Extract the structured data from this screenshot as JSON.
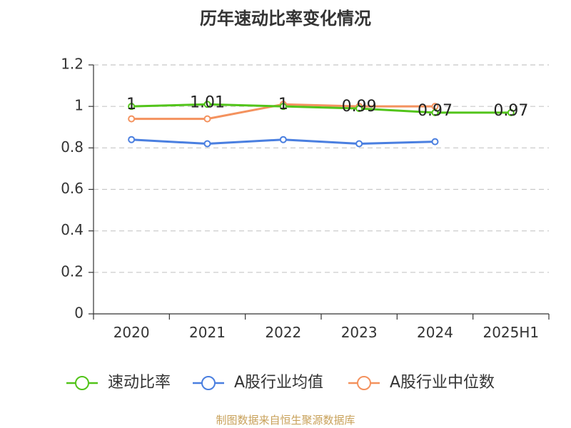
{
  "chart_data": {
    "type": "line",
    "title": "历年速动比率变化情况",
    "categories": [
      "2020",
      "2021",
      "2022",
      "2023",
      "2024",
      "2025H1"
    ],
    "y_ticks": [
      "0",
      "0.2",
      "0.4",
      "0.6",
      "0.8",
      "1",
      "1.2"
    ],
    "ylim": [
      0,
      1.2
    ],
    "grid": true,
    "series": [
      {
        "name": "速动比率",
        "color": "#52c41a",
        "values": [
          1.0,
          1.01,
          1.0,
          0.99,
          0.97,
          0.97
        ],
        "labels": [
          "1",
          "1.01",
          "1",
          "0.99",
          "0.97",
          "0.97"
        ]
      },
      {
        "name": "A股行业均值",
        "color": "#4a7fe0",
        "values": [
          0.84,
          0.82,
          0.84,
          0.82,
          0.83,
          null
        ],
        "labels": null
      },
      {
        "name": "A股行业中位数",
        "color": "#f4925e",
        "values": [
          0.94,
          0.94,
          1.01,
          1.0,
          1.0,
          null
        ],
        "labels": null
      }
    ],
    "legend_position": "bottom"
  },
  "source": "制图数据来自恒生聚源数据库"
}
